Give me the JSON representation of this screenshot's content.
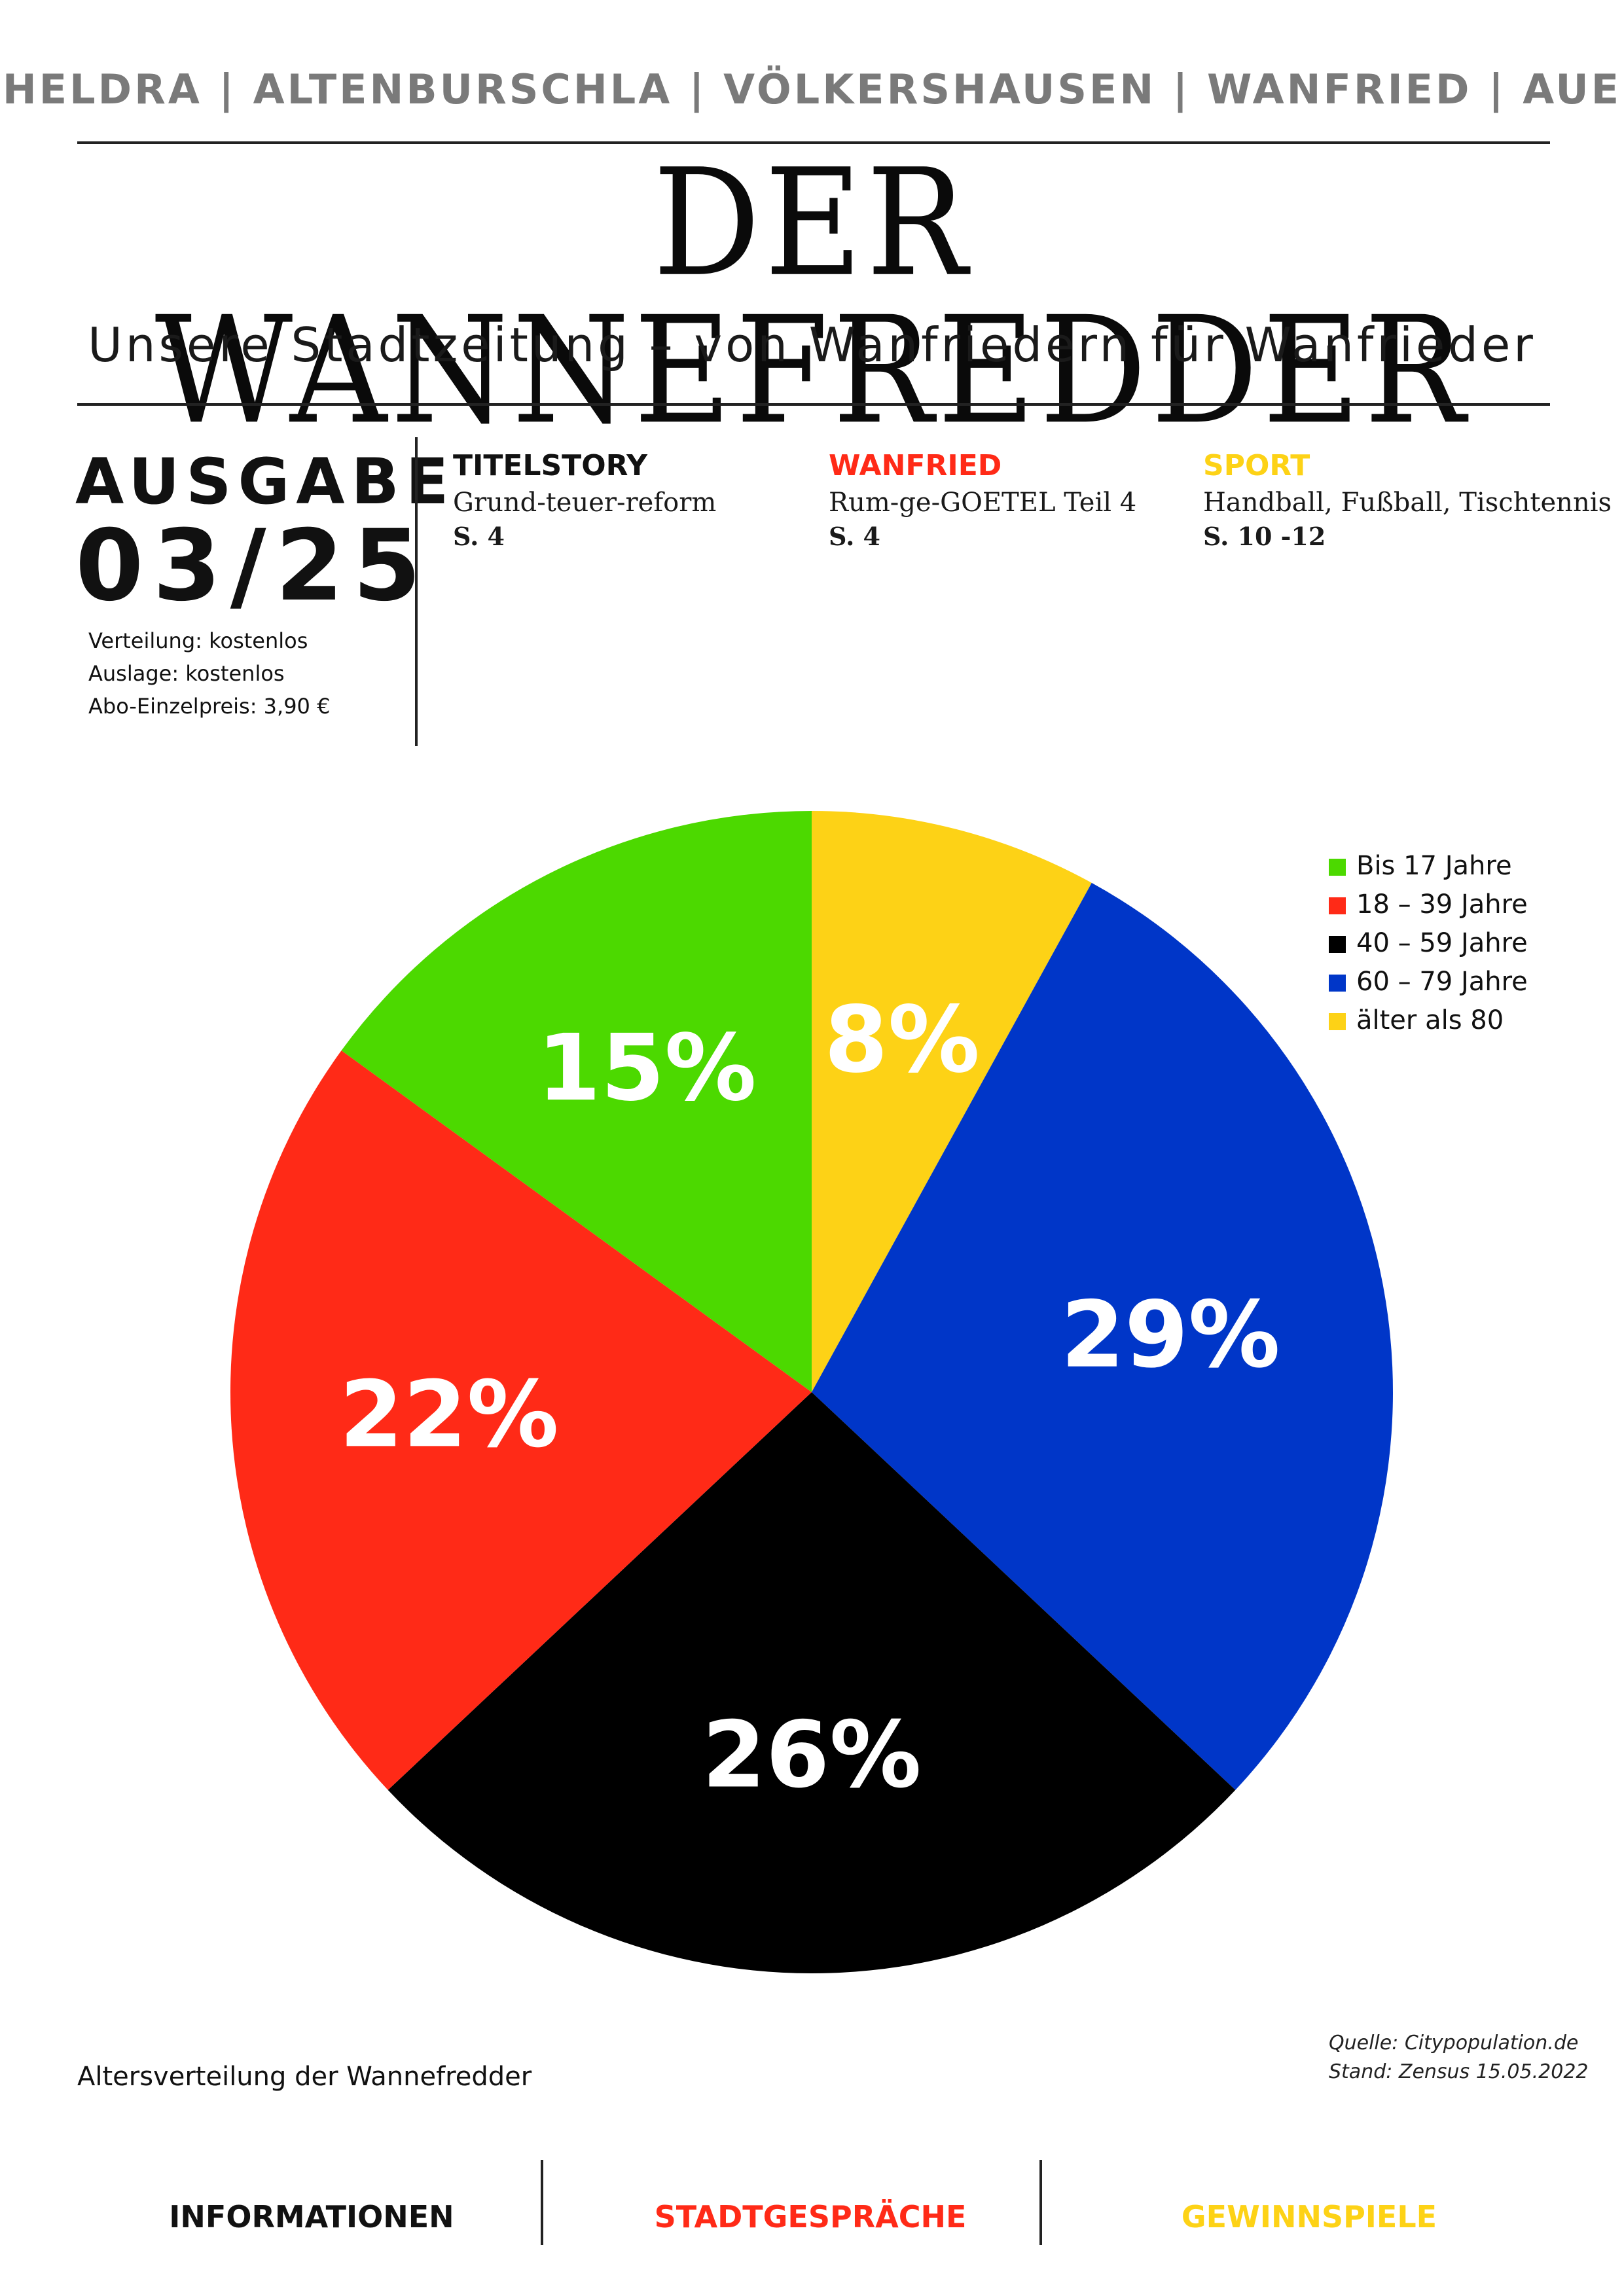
{
  "header": {
    "towns": "HELDRA | ALTENBURSCHLA | VÖLKERSHAUSEN | WANFRIED | AUE",
    "masthead": "DER WANNEFREDDER",
    "tagline": "Unsere Stadtzeitung – von Wanfriedern für Wanfrieder"
  },
  "issue": {
    "label": "AUSGABE",
    "number": "03/25",
    "distribution": "Verteilung: kostenlos",
    "display": "Auslage: kostenlos",
    "subscription": "Abo-Einzelpreis: 3,90 €"
  },
  "teasers": [
    {
      "category": "TITELSTORY",
      "description": "Grund-teuer-reform",
      "page": " S. 4",
      "color": "#111111"
    },
    {
      "category": "WANFRIED",
      "description": "Rum-ge-GOETEL Teil 4",
      "page": "S. 4",
      "color": "#ff2a17"
    },
    {
      "category": "SPORT",
      "description": "Handball, Fußball, Tischtennis",
      "page": "S. 10 -12",
      "color": "#fdd216"
    }
  ],
  "chart_data": {
    "type": "pie",
    "title": "Altersverteilung der Wannefredder",
    "categories": [
      "Bis 17 Jahre",
      "18 – 39 Jahre",
      "40 – 59 Jahre",
      "60 – 79 Jahre",
      "älter als 80"
    ],
    "values": [
      15,
      22,
      26,
      29,
      8
    ],
    "labels": [
      "15%",
      "22%",
      "26%",
      "29%",
      "8%"
    ],
    "colors": [
      "#4cd900",
      "#ff2a17",
      "#000000",
      "#0036c8",
      "#fdd216"
    ],
    "start": "12 o'clock",
    "direction": "clockwise",
    "slice_order": [
      "älter als 80",
      "60 – 79 Jahre",
      "40 – 59 Jahre",
      "18 – 39 Jahre",
      "Bis 17 Jahre"
    ],
    "legend_position": "top-right"
  },
  "source": {
    "line1": "Quelle: Citypopulation.de",
    "line2": "Stand: Zensus 15.05.2022"
  },
  "footer_nav": [
    {
      "label": "INFORMATIONEN",
      "color": "#111111"
    },
    {
      "label": "STADTGESPRÄCHE",
      "color": "#ff2a17"
    },
    {
      "label": "GEWINNSPIELE",
      "color": "#fdd216"
    }
  ]
}
